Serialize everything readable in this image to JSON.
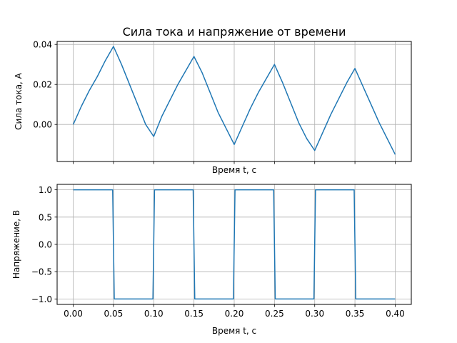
{
  "figure_title": "Сила тока и напряжение от времени",
  "chart_data": [
    {
      "type": "line",
      "title": "Сила тока и напряжение от времени",
      "xlabel": "Время t, c",
      "ylabel": "Сила тока, А",
      "xlim": [
        -0.02,
        0.42
      ],
      "ylim": [
        -0.0185,
        0.0415
      ],
      "xticks": [
        0.0,
        0.05,
        0.1,
        0.15,
        0.2,
        0.25,
        0.3,
        0.35,
        0.4
      ],
      "xtick_labels_visible": false,
      "yticks": [
        0.0,
        0.02,
        0.04
      ],
      "ytick_labels": [
        "0.00",
        "0.02",
        "0.04"
      ],
      "grid": true,
      "series_color": "#1f77b4",
      "x": [
        0.0,
        0.01,
        0.02,
        0.03,
        0.04,
        0.05,
        0.06,
        0.07,
        0.08,
        0.09,
        0.1,
        0.11,
        0.12,
        0.13,
        0.14,
        0.15,
        0.16,
        0.17,
        0.18,
        0.19,
        0.2,
        0.21,
        0.22,
        0.23,
        0.24,
        0.25,
        0.26,
        0.27,
        0.28,
        0.29,
        0.3,
        0.31,
        0.32,
        0.33,
        0.34,
        0.35,
        0.36,
        0.37,
        0.38,
        0.39,
        0.4
      ],
      "y": [
        0.0,
        0.009,
        0.017,
        0.024,
        0.032,
        0.039,
        0.03,
        0.02,
        0.01,
        0.0,
        -0.006,
        0.004,
        0.012,
        0.02,
        0.027,
        0.034,
        0.026,
        0.016,
        0.006,
        -0.002,
        -0.01,
        -0.001,
        0.008,
        0.016,
        0.023,
        0.03,
        0.021,
        0.011,
        0.001,
        -0.007,
        -0.013,
        -0.004,
        0.005,
        0.013,
        0.021,
        0.028,
        0.019,
        0.01,
        0.001,
        -0.007,
        -0.015
      ]
    },
    {
      "type": "line",
      "title": "",
      "xlabel": "Время t, c",
      "ylabel": "Напряжение, В",
      "xlim": [
        -0.02,
        0.42
      ],
      "ylim": [
        -1.1,
        1.1
      ],
      "xticks": [
        0.0,
        0.05,
        0.1,
        0.15,
        0.2,
        0.25,
        0.3,
        0.35,
        0.4
      ],
      "xtick_labels": [
        "0.00",
        "0.05",
        "0.10",
        "0.15",
        "0.20",
        "0.25",
        "0.30",
        "0.35",
        "0.40"
      ],
      "yticks": [
        1.0,
        0.5,
        0.0,
        -0.5,
        -1.0
      ],
      "ytick_labels": [
        "1.0",
        "0.5",
        "0.0",
        "−0.5",
        "−1.0"
      ],
      "grid": true,
      "series_color": "#1f77b4",
      "x": [
        0.0,
        0.049,
        0.051,
        0.099,
        0.101,
        0.149,
        0.151,
        0.199,
        0.201,
        0.249,
        0.251,
        0.299,
        0.301,
        0.349,
        0.351,
        0.4
      ],
      "y": [
        1,
        1,
        -1,
        -1,
        1,
        1,
        -1,
        -1,
        1,
        1,
        -1,
        -1,
        1,
        1,
        -1,
        -1
      ]
    }
  ]
}
